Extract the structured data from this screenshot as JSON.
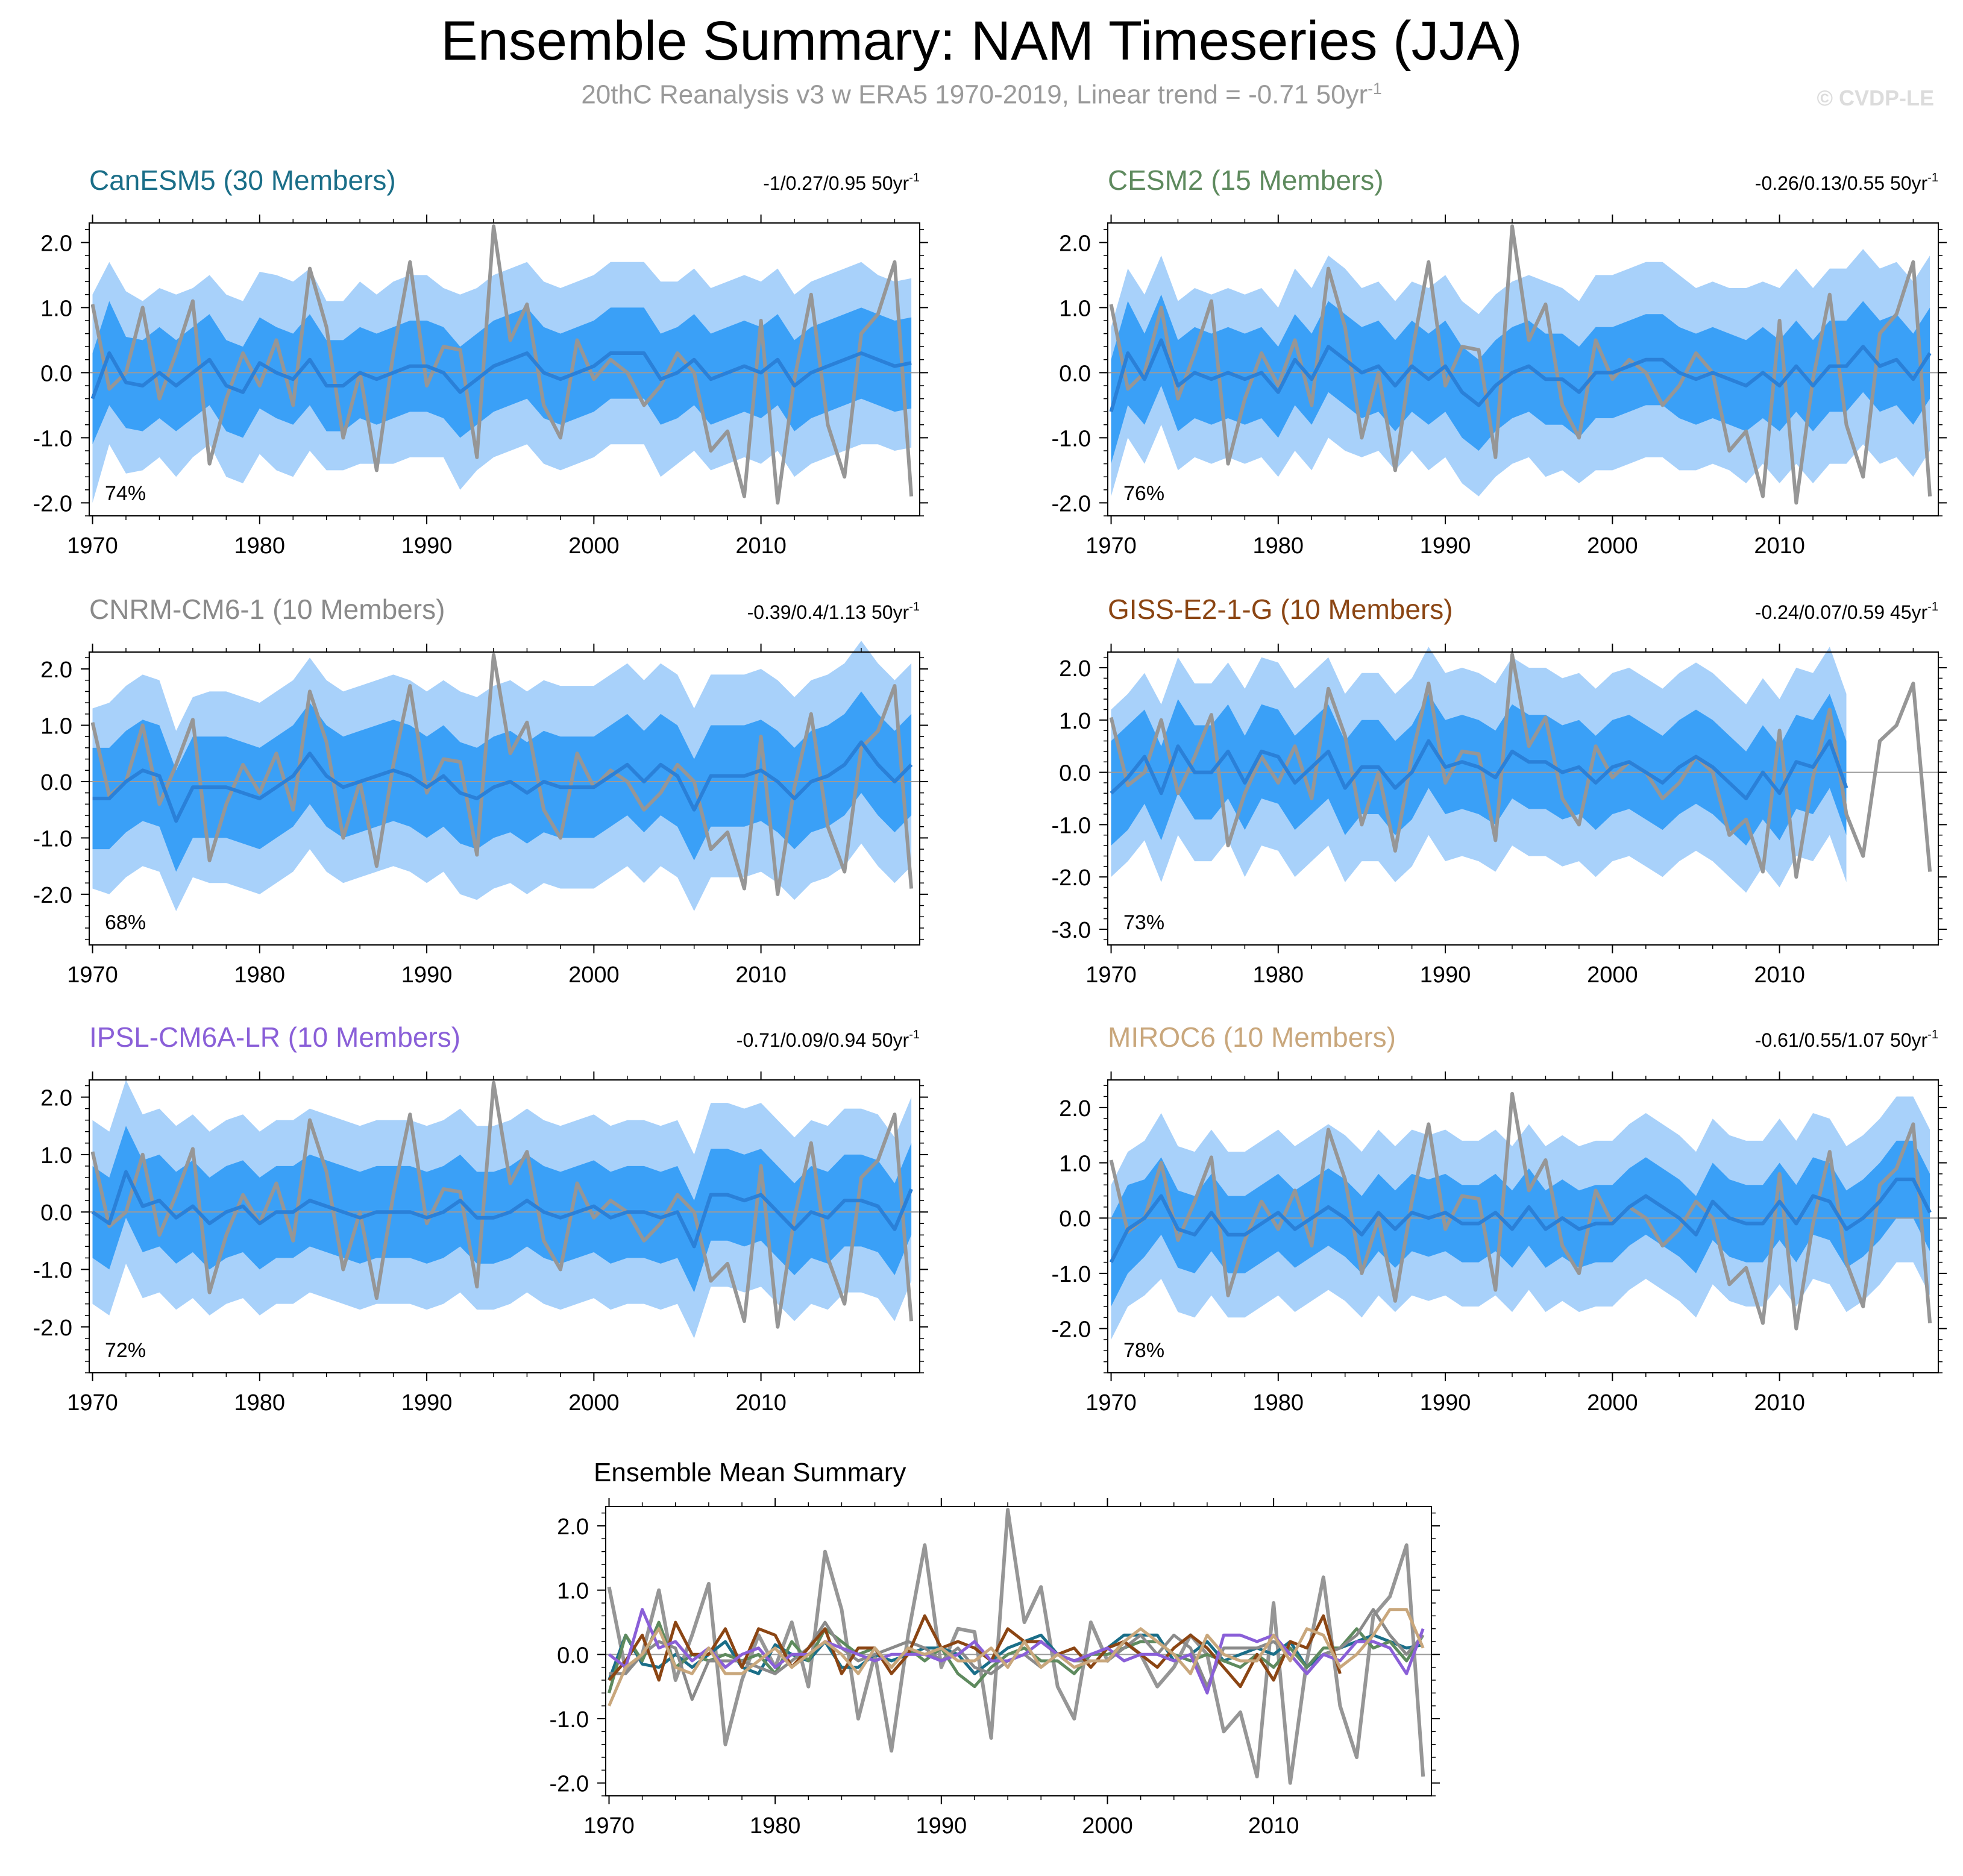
{
  "title": "Ensemble Summary: NAM Timeseries (JJA)",
  "subtitle": "20thC Reanalysis v3 w ERA5 1970-2019, Linear trend = -0.71 50yr",
  "subtitle_sup": "-1",
  "copyright": "© CVDP-LE",
  "colors": {
    "outer_band": "#a8d1fa",
    "inner_band": "#3aa0f7",
    "ensemble_mean": "#2a80d8",
    "observations": "#969696"
  },
  "observations": {
    "name": "20thC Reanalysis v3 w ERA5",
    "years": [
      1970,
      1971,
      1972,
      1973,
      1974,
      1975,
      1976,
      1977,
      1978,
      1979,
      1980,
      1981,
      1982,
      1983,
      1984,
      1985,
      1986,
      1987,
      1988,
      1989,
      1990,
      1991,
      1992,
      1993,
      1994,
      1995,
      1996,
      1997,
      1998,
      1999,
      2000,
      2001,
      2002,
      2003,
      2004,
      2005,
      2006,
      2007,
      2008,
      2009,
      2010,
      2011,
      2012,
      2013,
      2014,
      2015,
      2016,
      2017,
      2018,
      2019
    ],
    "values": [
      1.05,
      -0.25,
      0.0,
      1.0,
      -0.4,
      0.3,
      1.1,
      -1.4,
      -0.4,
      0.3,
      -0.2,
      0.5,
      -0.5,
      1.6,
      0.7,
      -1.0,
      0.0,
      -1.5,
      0.3,
      1.7,
      -0.2,
      0.4,
      0.35,
      -1.3,
      2.25,
      0.5,
      1.05,
      -0.5,
      -1.0,
      0.5,
      -0.1,
      0.2,
      0.0,
      -0.5,
      -0.2,
      0.3,
      0.0,
      -1.2,
      -0.9,
      -1.9,
      0.8,
      -2.0,
      -0.1,
      1.2,
      -0.8,
      -1.6,
      0.6,
      0.9,
      1.7,
      -1.9
    ]
  },
  "ensemble_mean_panel": {
    "title": "Ensemble Mean Summary",
    "yticks": [
      "2.0",
      "1.0",
      "0.0",
      "-1.0",
      "-2.0"
    ],
    "xticks": [
      "1970",
      "1980",
      "1990",
      "2000",
      "2010"
    ]
  },
  "chart_data": [
    {
      "type": "line",
      "model": "CanESM5",
      "title": "CanESM5 (30 Members)",
      "title_color": "#1a6e88",
      "mean_color": "#1a6e88",
      "trend_label": "-1/0.27/0.95 50yr",
      "trend_sup": "-1",
      "percent_label": "74%",
      "ylim": [
        -2.2,
        2.3
      ],
      "yticks": [
        2.0,
        1.0,
        0.0,
        -1.0,
        -2.0
      ],
      "ytick_labels": [
        "2.0",
        "1.0",
        "0.0",
        "-1.0",
        "-2.0"
      ],
      "xticks": [
        1970,
        1980,
        1990,
        2000,
        2010
      ],
      "xtick_labels": [
        "1970",
        "1980",
        "1990",
        "2000",
        "2010"
      ],
      "x_start": 1970,
      "x_end": 2019,
      "ensemble_mean": [
        -0.4,
        0.3,
        -0.15,
        -0.2,
        0.0,
        -0.2,
        0.0,
        0.2,
        -0.2,
        -0.3,
        0.15,
        0.0,
        -0.1,
        0.2,
        -0.2,
        -0.2,
        0.0,
        -0.1,
        0.0,
        0.1,
        0.1,
        0.0,
        -0.3,
        -0.1,
        0.1,
        0.2,
        0.3,
        0.0,
        -0.1,
        0.0,
        0.1,
        0.3,
        0.3,
        0.3,
        -0.1,
        0.0,
        0.2,
        -0.1,
        0.0,
        0.1,
        0.0,
        0.2,
        -0.2,
        0.0,
        0.1,
        0.2,
        0.3,
        0.2,
        0.1,
        0.15
      ],
      "inner_spread": [
        0.7,
        0.8,
        0.7,
        0.7,
        0.7,
        0.7,
        0.7,
        0.7,
        0.7,
        0.7,
        0.7,
        0.7,
        0.7,
        0.7,
        0.7,
        0.7,
        0.7,
        0.7,
        0.7,
        0.7,
        0.7,
        0.7,
        0.7,
        0.7,
        0.7,
        0.7,
        0.7,
        0.7,
        0.7,
        0.7,
        0.7,
        0.7,
        0.7,
        0.7,
        0.7,
        0.7,
        0.7,
        0.7,
        0.7,
        0.7,
        0.7,
        0.7,
        0.7,
        0.7,
        0.7,
        0.7,
        0.7,
        0.7,
        0.7,
        0.7
      ],
      "outer_spread": [
        1.6,
        1.4,
        1.4,
        1.3,
        1.3,
        1.4,
        1.3,
        1.3,
        1.4,
        1.4,
        1.4,
        1.5,
        1.5,
        1.4,
        1.3,
        1.3,
        1.4,
        1.3,
        1.4,
        1.4,
        1.4,
        1.3,
        1.5,
        1.4,
        1.4,
        1.4,
        1.4,
        1.4,
        1.4,
        1.4,
        1.4,
        1.4,
        1.4,
        1.4,
        1.5,
        1.4,
        1.4,
        1.4,
        1.4,
        1.4,
        1.4,
        1.4,
        1.4,
        1.4,
        1.4,
        1.4,
        1.4,
        1.3,
        1.3,
        1.3
      ]
    },
    {
      "type": "line",
      "model": "CESM2",
      "title": "CESM2 (15 Members)",
      "title_color": "#5e8a5e",
      "mean_color": "#5e8a5e",
      "trend_label": "-0.26/0.13/0.55 50yr",
      "trend_sup": "-1",
      "percent_label": "76%",
      "ylim": [
        -2.2,
        2.3
      ],
      "yticks": [
        2.0,
        1.0,
        0.0,
        -1.0,
        -2.0
      ],
      "ytick_labels": [
        "2.0",
        "1.0",
        "0.0",
        "-1.0",
        "-2.0"
      ],
      "xticks": [
        1970,
        1980,
        1990,
        2000,
        2010
      ],
      "xtick_labels": [
        "1970",
        "1980",
        "1990",
        "2000",
        "2010"
      ],
      "x_start": 1970,
      "x_end": 2019,
      "ensemble_mean": [
        -0.6,
        0.3,
        -0.1,
        0.5,
        -0.2,
        0.0,
        -0.1,
        0.0,
        -0.1,
        0.0,
        -0.3,
        0.2,
        -0.1,
        0.4,
        0.2,
        0.0,
        0.1,
        -0.2,
        0.1,
        -0.1,
        0.1,
        -0.3,
        -0.5,
        -0.2,
        0.0,
        0.1,
        -0.1,
        -0.1,
        -0.3,
        0.0,
        0.0,
        0.1,
        0.2,
        0.2,
        0.0,
        -0.1,
        0.0,
        -0.1,
        -0.2,
        0.0,
        -0.2,
        0.1,
        -0.2,
        0.1,
        0.1,
        0.4,
        0.1,
        0.2,
        -0.1,
        0.3
      ],
      "inner_spread": [
        0.8,
        0.8,
        0.7,
        0.7,
        0.7,
        0.7,
        0.7,
        0.7,
        0.7,
        0.7,
        0.7,
        0.7,
        0.7,
        0.7,
        0.7,
        0.7,
        0.7,
        0.7,
        0.7,
        0.7,
        0.7,
        0.7,
        0.7,
        0.7,
        0.7,
        0.7,
        0.7,
        0.7,
        0.7,
        0.7,
        0.7,
        0.7,
        0.7,
        0.7,
        0.7,
        0.7,
        0.7,
        0.7,
        0.7,
        0.7,
        0.7,
        0.7,
        0.7,
        0.7,
        0.7,
        0.7,
        0.7,
        0.7,
        0.7,
        0.7
      ],
      "outer_spread": [
        1.3,
        1.3,
        1.3,
        1.3,
        1.3,
        1.3,
        1.3,
        1.3,
        1.3,
        1.3,
        1.3,
        1.4,
        1.4,
        1.4,
        1.4,
        1.3,
        1.3,
        1.3,
        1.3,
        1.4,
        1.4,
        1.4,
        1.4,
        1.4,
        1.4,
        1.4,
        1.5,
        1.4,
        1.4,
        1.5,
        1.5,
        1.5,
        1.5,
        1.5,
        1.5,
        1.4,
        1.4,
        1.4,
        1.5,
        1.4,
        1.5,
        1.5,
        1.5,
        1.5,
        1.5,
        1.5,
        1.5,
        1.5,
        1.5,
        1.5
      ]
    },
    {
      "type": "line",
      "model": "CNRM-CM6-1",
      "title": "CNRM-CM6-1 (10 Members)",
      "title_color": "#8a8a8a",
      "mean_color": "#8a8a8a",
      "trend_label": "-0.39/0.4/1.13 50yr",
      "trend_sup": "-1",
      "percent_label": "68%",
      "ylim": [
        -2.9,
        2.3
      ],
      "yticks": [
        2.0,
        1.0,
        0.0,
        -1.0,
        -2.0
      ],
      "ytick_labels": [
        "2.0",
        "1.0",
        "0.0",
        "-1.0",
        "-2.0"
      ],
      "xticks": [
        1970,
        1980,
        1990,
        2000,
        2010
      ],
      "xtick_labels": [
        "1970",
        "1980",
        "1990",
        "2000",
        "2010"
      ],
      "x_start": 1970,
      "x_end": 2019,
      "ensemble_mean": [
        -0.3,
        -0.3,
        0.0,
        0.2,
        0.1,
        -0.7,
        -0.1,
        -0.1,
        -0.1,
        -0.2,
        -0.3,
        -0.1,
        0.1,
        0.5,
        0.1,
        -0.1,
        0.0,
        0.1,
        0.2,
        0.1,
        -0.1,
        0.1,
        -0.2,
        -0.3,
        -0.1,
        0.0,
        -0.2,
        0.0,
        -0.1,
        -0.1,
        -0.1,
        0.1,
        0.3,
        0.0,
        0.3,
        0.1,
        -0.5,
        0.1,
        0.1,
        0.1,
        0.2,
        0.0,
        -0.3,
        0.0,
        0.1,
        0.3,
        0.7,
        0.3,
        0.0,
        0.3
      ],
      "inner_spread": [
        0.9,
        0.9,
        0.9,
        0.9,
        0.9,
        0.9,
        0.9,
        0.9,
        0.9,
        0.9,
        0.9,
        0.9,
        0.9,
        0.9,
        0.9,
        0.9,
        0.9,
        0.9,
        0.9,
        0.9,
        0.9,
        0.9,
        0.9,
        0.9,
        0.9,
        0.9,
        0.9,
        0.9,
        0.9,
        0.9,
        0.9,
        0.9,
        0.9,
        0.9,
        0.9,
        0.9,
        0.9,
        0.9,
        0.9,
        0.9,
        0.9,
        0.9,
        0.9,
        0.9,
        0.9,
        0.9,
        0.9,
        0.9,
        0.9,
        0.9
      ],
      "outer_spread": [
        1.6,
        1.7,
        1.7,
        1.7,
        1.7,
        1.6,
        1.6,
        1.7,
        1.7,
        1.7,
        1.7,
        1.7,
        1.7,
        1.7,
        1.7,
        1.7,
        1.7,
        1.7,
        1.7,
        1.7,
        1.7,
        1.7,
        1.8,
        1.8,
        1.8,
        1.8,
        1.8,
        1.8,
        1.8,
        1.8,
        1.8,
        1.8,
        1.8,
        1.8,
        1.8,
        1.8,
        1.8,
        1.8,
        1.8,
        1.8,
        1.8,
        1.8,
        1.8,
        1.8,
        1.8,
        1.8,
        1.8,
        1.8,
        1.8,
        1.8
      ]
    },
    {
      "type": "line",
      "model": "GISS-E2-1-G",
      "title": "GISS-E2-1-G (10 Members)",
      "title_color": "#8b4513",
      "mean_color": "#8b4513",
      "trend_label": "-0.24/0.07/0.59 45yr",
      "trend_sup": "-1",
      "percent_label": "73%",
      "ylim": [
        -3.3,
        2.3
      ],
      "yticks": [
        2.0,
        1.0,
        0.0,
        -1.0,
        -2.0,
        -3.0
      ],
      "ytick_labels": [
        "2.0",
        "1.0",
        "0.0",
        "-1.0",
        "-2.0",
        "-3.0"
      ],
      "xticks": [
        1970,
        1980,
        1990,
        2000,
        2010
      ],
      "xtick_labels": [
        "1970",
        "1980",
        "1990",
        "2000",
        "2010"
      ],
      "x_start": 1970,
      "x_end": 2014,
      "ensemble_mean": [
        -0.4,
        -0.1,
        0.3,
        -0.4,
        0.5,
        0.0,
        0.0,
        0.4,
        -0.2,
        0.4,
        0.3,
        -0.2,
        0.1,
        0.4,
        -0.3,
        0.1,
        0.1,
        -0.3,
        0.0,
        0.6,
        0.1,
        0.2,
        0.1,
        -0.1,
        0.4,
        0.2,
        0.2,
        0.0,
        0.1,
        -0.2,
        0.1,
        0.2,
        0.0,
        -0.2,
        0.1,
        0.3,
        0.1,
        -0.2,
        -0.5,
        0.0,
        -0.4,
        0.2,
        0.1,
        0.6,
        -0.3
      ],
      "inner_spread": [
        1.0,
        1.0,
        0.9,
        0.9,
        0.9,
        0.9,
        0.9,
        0.9,
        0.9,
        0.9,
        0.9,
        0.9,
        0.9,
        0.9,
        0.9,
        0.9,
        0.9,
        0.9,
        0.9,
        0.9,
        0.9,
        0.9,
        0.9,
        0.9,
        0.9,
        0.9,
        0.9,
        0.9,
        0.9,
        0.9,
        0.9,
        0.9,
        0.9,
        0.9,
        0.9,
        0.9,
        0.9,
        0.9,
        0.9,
        0.9,
        0.9,
        0.9,
        0.9,
        0.9,
        0.9
      ],
      "outer_spread": [
        1.6,
        1.6,
        1.6,
        1.7,
        1.7,
        1.7,
        1.7,
        1.7,
        1.8,
        1.8,
        1.8,
        1.8,
        1.8,
        1.8,
        1.8,
        1.8,
        1.8,
        1.8,
        1.8,
        1.8,
        1.8,
        1.8,
        1.8,
        1.8,
        1.8,
        1.8,
        1.8,
        1.8,
        1.8,
        1.8,
        1.8,
        1.8,
        1.8,
        1.8,
        1.8,
        1.8,
        1.8,
        1.8,
        1.8,
        1.8,
        1.8,
        1.8,
        1.8,
        1.8,
        1.8
      ]
    },
    {
      "type": "line",
      "model": "IPSL-CM6A-LR",
      "title": "IPSL-CM6A-LR (10 Members)",
      "title_color": "#8a5fd8",
      "mean_color": "#8a5fd8",
      "trend_label": "-0.71/0.09/0.94 50yr",
      "trend_sup": "-1",
      "percent_label": "72%",
      "ylim": [
        -2.8,
        2.3
      ],
      "yticks": [
        2.0,
        1.0,
        0.0,
        -1.0,
        -2.0
      ],
      "ytick_labels": [
        "2.0",
        "1.0",
        "0.0",
        "-1.0",
        "-2.0"
      ],
      "xticks": [
        1970,
        1980,
        1990,
        2000,
        2010
      ],
      "xtick_labels": [
        "1970",
        "1980",
        "1990",
        "2000",
        "2010"
      ],
      "x_start": 1970,
      "x_end": 2019,
      "ensemble_mean": [
        0.0,
        -0.2,
        0.7,
        0.1,
        0.2,
        -0.1,
        0.1,
        -0.2,
        0.0,
        0.1,
        -0.2,
        0.0,
        0.0,
        0.2,
        0.1,
        0.0,
        -0.1,
        0.0,
        0.0,
        0.0,
        -0.1,
        0.0,
        0.2,
        -0.1,
        -0.1,
        0.0,
        0.2,
        0.0,
        -0.1,
        0.0,
        0.1,
        -0.1,
        0.0,
        0.0,
        -0.1,
        0.0,
        -0.6,
        0.3,
        0.3,
        0.2,
        0.3,
        0.0,
        -0.3,
        0.0,
        -0.1,
        0.2,
        0.2,
        0.1,
        -0.3,
        0.4
      ],
      "inner_spread": [
        0.8,
        0.8,
        0.8,
        0.8,
        0.8,
        0.8,
        0.8,
        0.8,
        0.8,
        0.8,
        0.8,
        0.8,
        0.8,
        0.8,
        0.8,
        0.8,
        0.8,
        0.8,
        0.8,
        0.8,
        0.8,
        0.8,
        0.8,
        0.8,
        0.8,
        0.8,
        0.8,
        0.8,
        0.8,
        0.8,
        0.8,
        0.8,
        0.8,
        0.8,
        0.8,
        0.8,
        0.8,
        0.8,
        0.8,
        0.8,
        0.8,
        0.8,
        0.8,
        0.8,
        0.8,
        0.8,
        0.8,
        0.8,
        0.8,
        0.8
      ],
      "outer_spread": [
        1.6,
        1.6,
        1.6,
        1.6,
        1.6,
        1.6,
        1.6,
        1.6,
        1.6,
        1.6,
        1.6,
        1.6,
        1.6,
        1.6,
        1.6,
        1.6,
        1.6,
        1.6,
        1.6,
        1.6,
        1.6,
        1.6,
        1.6,
        1.6,
        1.6,
        1.6,
        1.6,
        1.6,
        1.6,
        1.6,
        1.6,
        1.6,
        1.6,
        1.6,
        1.6,
        1.6,
        1.6,
        1.6,
        1.6,
        1.6,
        1.6,
        1.6,
        1.6,
        1.6,
        1.6,
        1.6,
        1.6,
        1.6,
        1.6,
        1.6
      ]
    },
    {
      "type": "line",
      "model": "MIROC6",
      "title": "MIROC6 (10 Members)",
      "title_color": "#c9a77c",
      "mean_color": "#c9a77c",
      "trend_label": "-0.61/0.55/1.07 50yr",
      "trend_sup": "-1",
      "percent_label": "78%",
      "ylim": [
        -2.8,
        2.5
      ],
      "yticks": [
        2.0,
        1.0,
        0.0,
        -1.0,
        -2.0
      ],
      "ytick_labels": [
        "2.0",
        "1.0",
        "0.0",
        "-1.0",
        "-2.0"
      ],
      "xticks": [
        1970,
        1980,
        1990,
        2000,
        2010
      ],
      "xtick_labels": [
        "1970",
        "1980",
        "1990",
        "2000",
        "2010"
      ],
      "x_start": 1970,
      "x_end": 2019,
      "ensemble_mean": [
        -0.8,
        -0.2,
        0.0,
        0.4,
        -0.2,
        -0.3,
        0.1,
        -0.3,
        -0.3,
        -0.1,
        0.1,
        -0.2,
        0.0,
        0.2,
        0.0,
        -0.3,
        0.1,
        -0.2,
        0.1,
        0.0,
        0.1,
        -0.1,
        -0.1,
        0.1,
        -0.2,
        0.2,
        -0.2,
        0.0,
        -0.2,
        -0.1,
        -0.1,
        0.2,
        0.4,
        0.2,
        0.0,
        -0.3,
        0.3,
        0.0,
        -0.1,
        -0.1,
        0.3,
        -0.1,
        0.4,
        0.3,
        -0.2,
        0.0,
        0.3,
        0.7,
        0.7,
        0.1
      ],
      "inner_spread": [
        0.8,
        0.8,
        0.7,
        0.7,
        0.7,
        0.7,
        0.7,
        0.7,
        0.7,
        0.7,
        0.7,
        0.7,
        0.7,
        0.7,
        0.7,
        0.7,
        0.7,
        0.7,
        0.7,
        0.7,
        0.7,
        0.7,
        0.7,
        0.7,
        0.7,
        0.7,
        0.7,
        0.7,
        0.7,
        0.7,
        0.7,
        0.7,
        0.7,
        0.7,
        0.7,
        0.7,
        0.7,
        0.7,
        0.7,
        0.7,
        0.7,
        0.7,
        0.7,
        0.7,
        0.7,
        0.7,
        0.7,
        0.7,
        0.7,
        0.7
      ],
      "outer_spread": [
        1.4,
        1.4,
        1.4,
        1.5,
        1.5,
        1.5,
        1.5,
        1.5,
        1.5,
        1.5,
        1.5,
        1.5,
        1.5,
        1.5,
        1.5,
        1.5,
        1.5,
        1.5,
        1.5,
        1.5,
        1.5,
        1.5,
        1.5,
        1.5,
        1.5,
        1.5,
        1.5,
        1.5,
        1.5,
        1.5,
        1.5,
        1.5,
        1.5,
        1.5,
        1.5,
        1.5,
        1.5,
        1.5,
        1.5,
        1.5,
        1.5,
        1.5,
        1.5,
        1.5,
        1.5,
        1.5,
        1.5,
        1.5,
        1.5,
        1.5
      ]
    }
  ]
}
